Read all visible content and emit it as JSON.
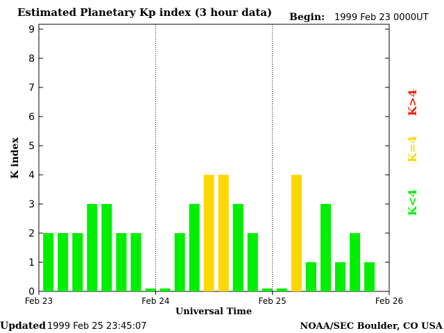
{
  "chart_data": {
    "type": "bar",
    "title": "Estimated Planetary Kp index (3 hour data)",
    "begin_label": "Begin:",
    "begin_value": "1999 Feb 23 0000UT",
    "ylabel": "K index",
    "xlabel": "Universal Time",
    "ylim": [
      0,
      9
    ],
    "y_ticks": [
      "0",
      "1",
      "2",
      "3",
      "4",
      "5",
      "6",
      "7",
      "8",
      "9"
    ],
    "x_ticks": [
      "Feb 23",
      "Feb 24",
      "Feb 25",
      "Feb 26"
    ],
    "day_separators_after_bar": [
      8,
      16
    ],
    "values": [
      2,
      2,
      2,
      3,
      3,
      2,
      2,
      0.1,
      0.1,
      2,
      3,
      4,
      4,
      3,
      2,
      0.1,
      0.1,
      4,
      1,
      3,
      1,
      2,
      1
    ],
    "legend": [
      {
        "label": "K<4",
        "color": "#00ee00"
      },
      {
        "label": "K=4",
        "color": "#ffd700"
      },
      {
        "label": "K>4",
        "color": "#ee2200"
      }
    ]
  },
  "footer": {
    "updated_label": "Updated",
    "updated_value": "1999 Feb 25 23:45:07",
    "source": "NOAA/SEC Boulder, CO USA"
  },
  "colors": {
    "low": "#00ee00",
    "moderate": "#ffd700",
    "high": "#ee2200"
  }
}
